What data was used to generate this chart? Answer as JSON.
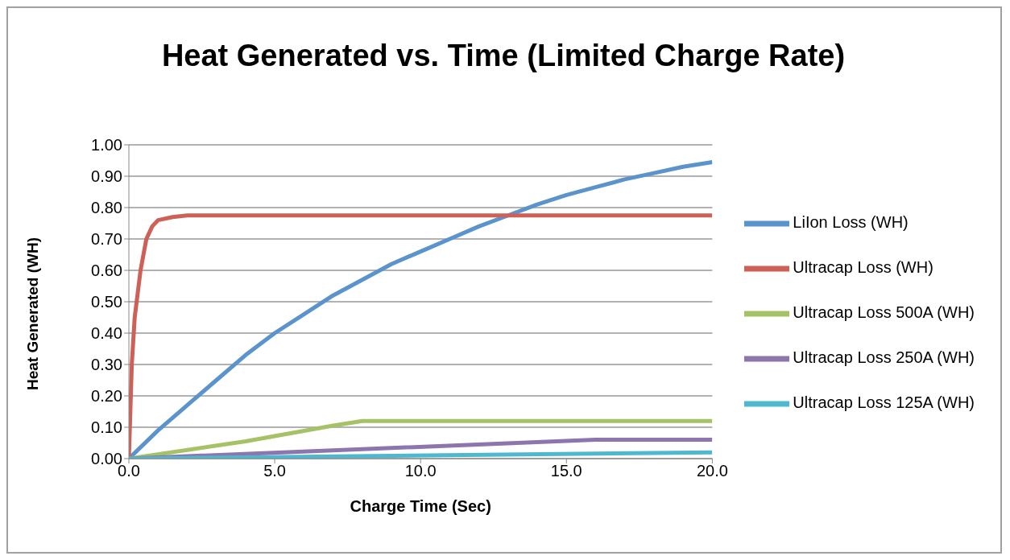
{
  "chart_data": {
    "type": "line",
    "title": "Heat Generated vs. Time (Limited Charge Rate)",
    "xlabel": "Charge Time (Sec)",
    "ylabel": "Heat Generated (WH)",
    "xlim": [
      0,
      20
    ],
    "xticks": [
      {
        "value": 0,
        "label": "0.0"
      },
      {
        "value": 5,
        "label": "5.0"
      },
      {
        "value": 10,
        "label": "10.0"
      },
      {
        "value": 15,
        "label": "15.0"
      },
      {
        "value": 20,
        "label": "20.0"
      }
    ],
    "ylim": [
      0,
      1
    ],
    "yticks": [
      {
        "value": 0,
        "label": "0.00"
      },
      {
        "value": 0.1,
        "label": "0.10"
      },
      {
        "value": 0.2,
        "label": "0.20"
      },
      {
        "value": 0.3,
        "label": "0.30"
      },
      {
        "value": 0.4,
        "label": "0.40"
      },
      {
        "value": 0.5,
        "label": "0.50"
      },
      {
        "value": 0.6,
        "label": "0.60"
      },
      {
        "value": 0.7,
        "label": "0.70"
      },
      {
        "value": 0.8,
        "label": "0.80"
      },
      {
        "value": 0.9,
        "label": "0.90"
      },
      {
        "value": 1,
        "label": "1.00"
      }
    ],
    "grid": "y",
    "legend": "right",
    "marker": "none",
    "line_style": "solid",
    "series": [
      {
        "name": "LiIon Loss (WH)",
        "color": "#5b93cc",
        "x": [
          0,
          1,
          2,
          3,
          4,
          5,
          6,
          7,
          8,
          9,
          10,
          11,
          12,
          13,
          14,
          15,
          16,
          17,
          18,
          19,
          20
        ],
        "values": [
          0,
          0.09,
          0.17,
          0.25,
          0.33,
          0.4,
          0.46,
          0.52,
          0.57,
          0.62,
          0.66,
          0.7,
          0.74,
          0.775,
          0.81,
          0.84,
          0.865,
          0.89,
          0.91,
          0.93,
          0.945
        ]
      },
      {
        "name": "Ultracap Loss (WH)",
        "color": "#cd6158",
        "x": [
          0,
          0.1,
          0.2,
          0.4,
          0.6,
          0.8,
          1,
          1.5,
          2,
          20
        ],
        "values": [
          0,
          0.3,
          0.45,
          0.6,
          0.7,
          0.74,
          0.76,
          0.77,
          0.775,
          0.775
        ]
      },
      {
        "name": "Ultracap Loss 500A (WH)",
        "color": "#a6c266",
        "x": [
          0,
          4,
          7,
          8,
          20
        ],
        "values": [
          0,
          0.055,
          0.105,
          0.12,
          0.12
        ]
      },
      {
        "name": "Ultracap Loss 250A (WH)",
        "color": "#8d75ae",
        "x": [
          0,
          8,
          16,
          20
        ],
        "values": [
          0,
          0.03,
          0.06,
          0.06
        ]
      },
      {
        "name": "Ultracap Loss 125A (WH)",
        "color": "#4fb8cf",
        "x": [
          0,
          20
        ],
        "values": [
          0,
          0.02
        ]
      }
    ]
  }
}
